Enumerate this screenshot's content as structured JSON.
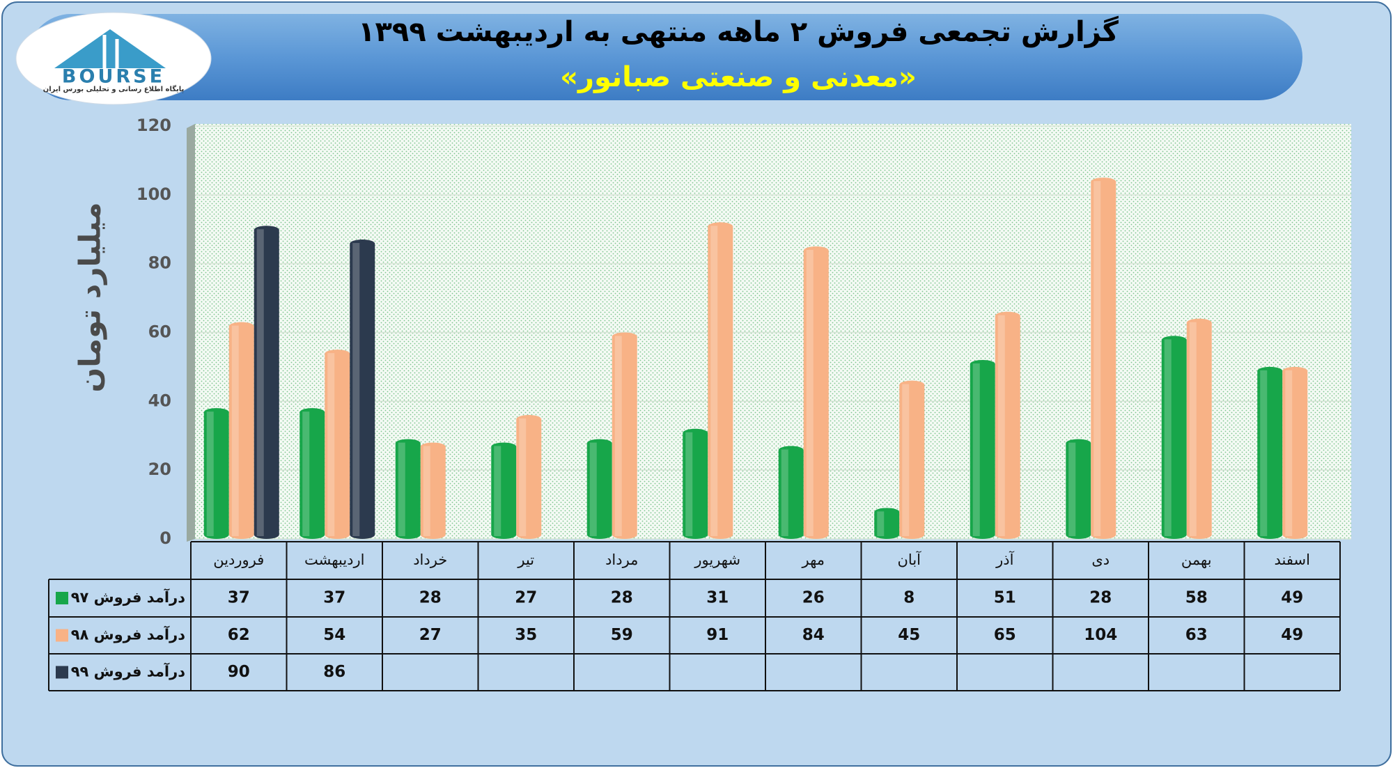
{
  "logo": {
    "name": "BOURSE",
    "tagline": "پایگاه اطلاع رسانی و تحلیلی بورس ایران"
  },
  "chart_data": {
    "type": "bar",
    "title": "گزارش تجمعی فروش ۲ ماهه منتهی به اردیبهشت ۱۳۹۹",
    "subtitle": "«معدنی و صنعتی صبانور»",
    "y_label": "میلیارد تومان",
    "categories": [
      "فروردین",
      "اردیبهشت",
      "خرداد",
      "تیر",
      "مرداد",
      "شهریور",
      "مهر",
      "آبان",
      "آذر",
      "دی",
      "بهمن",
      "اسفند"
    ],
    "series": [
      {
        "name": "درآمد فروش ۹۷",
        "color": "#17a64a",
        "values": [
          37,
          37,
          28,
          27,
          28,
          31,
          26,
          8,
          51,
          28,
          58,
          49
        ]
      },
      {
        "name": "درآمد فروش ۹۸",
        "color": "#f8b286",
        "values": [
          62,
          54,
          27,
          35,
          59,
          91,
          84,
          45,
          65,
          104,
          63,
          49
        ]
      },
      {
        "name": "درآمد فروش ۹۹",
        "color": "#2c3a4e",
        "values": [
          90,
          86,
          null,
          null,
          null,
          null,
          null,
          null,
          null,
          null,
          null,
          null
        ]
      }
    ],
    "ylim": [
      0,
      120
    ],
    "yticks": [
      0,
      20,
      40,
      60,
      80,
      100,
      120
    ],
    "grid": true
  }
}
